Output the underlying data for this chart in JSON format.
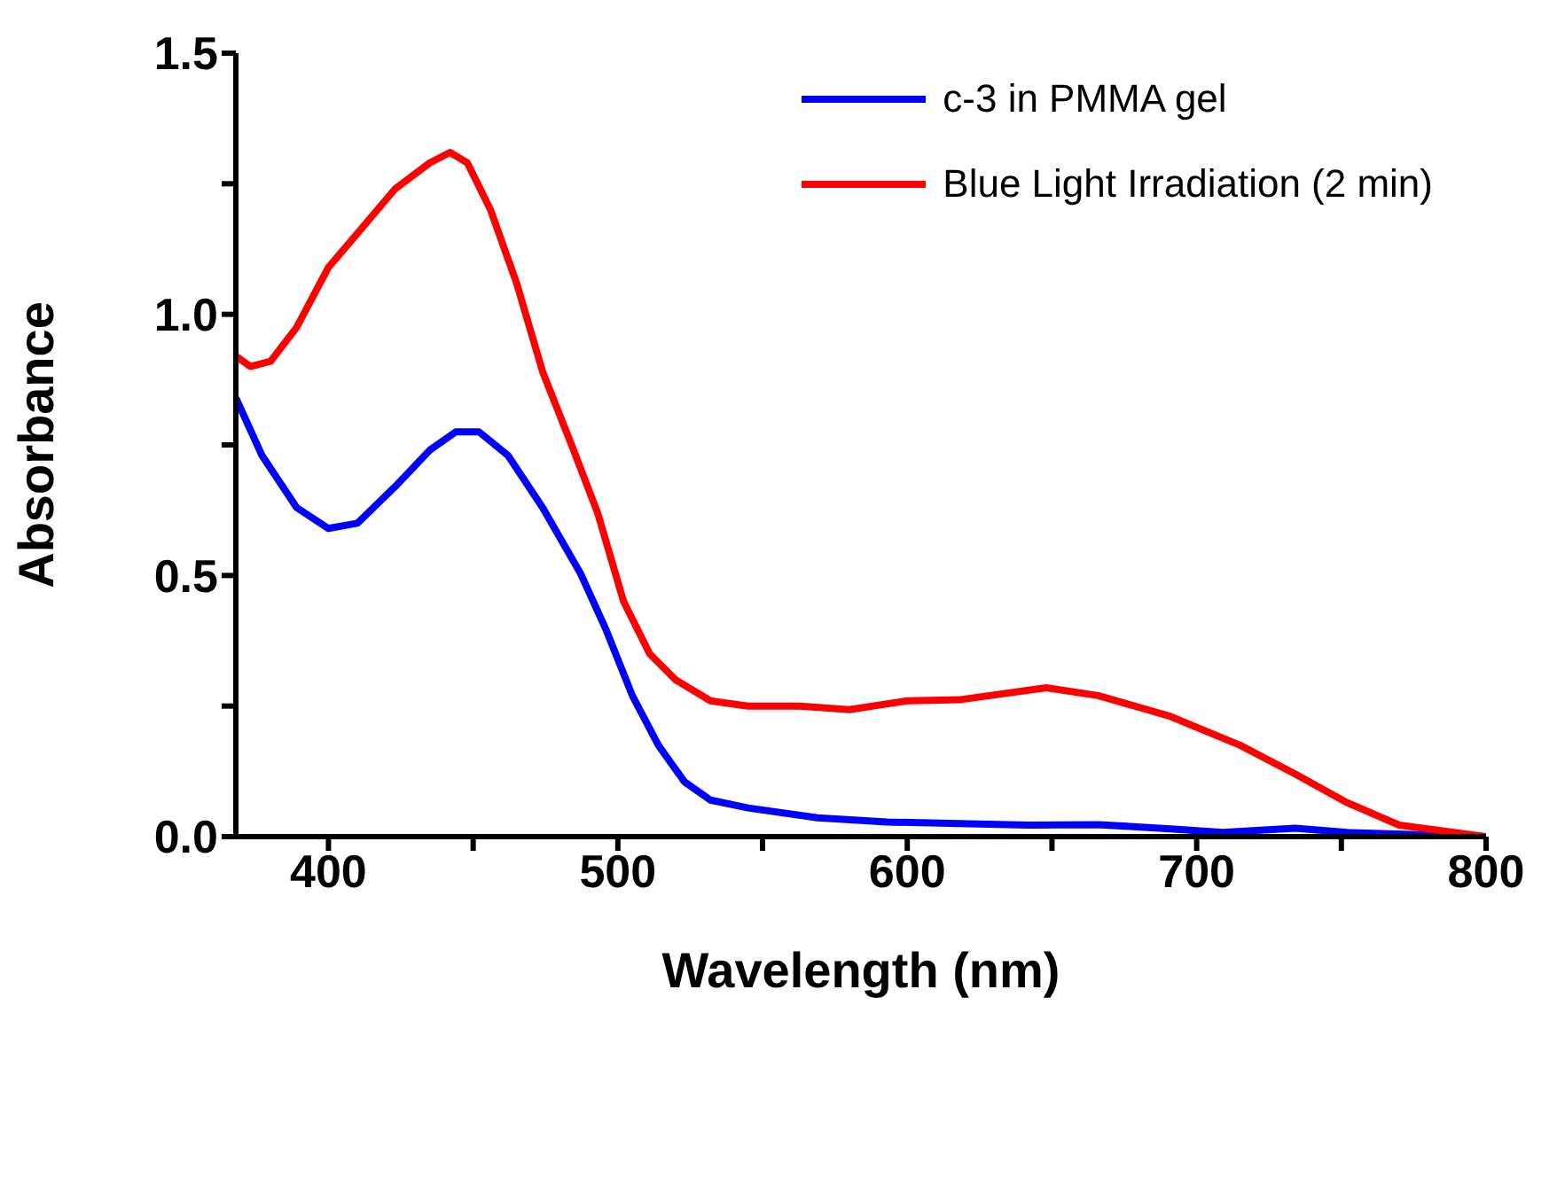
{
  "chart_data": {
    "type": "line",
    "xlabel": "Wavelength (nm)",
    "ylabel": "Absorbance",
    "xlim": [
      368,
      800
    ],
    "ylim": [
      0,
      1.5
    ],
    "xticks": [
      400,
      {
        "value": 450,
        "label": null
      },
      500,
      {
        "value": 550,
        "label": null
      },
      600,
      {
        "value": 650,
        "label": null
      },
      700,
      {
        "value": 750,
        "label": null
      },
      800
    ],
    "yticks": [
      {
        "value": 0,
        "label": "0.0"
      },
      {
        "value": 0.25,
        "label": null
      },
      {
        "value": 0.5,
        "label": "0.5"
      },
      {
        "value": 0.75,
        "label": null
      },
      {
        "value": 1.0,
        "label": "1.0"
      },
      {
        "value": 1.25,
        "label": null
      },
      {
        "value": 1.5,
        "label": "1.5"
      }
    ],
    "grid": false,
    "legend": "top right",
    "marker": "none",
    "line_style": "solid",
    "series": [
      {
        "name": "c-3 in PMMA gel",
        "color": "#0000ff",
        "x": [
          368,
          377,
          389,
          400,
          410,
          423,
          435,
          444,
          452,
          462,
          474,
          487,
          496,
          505,
          514,
          523,
          532,
          545,
          569,
          593,
          618,
          642,
          666,
          691,
          709,
          734,
          752,
          800
        ],
        "values": [
          0.84,
          0.73,
          0.63,
          0.59,
          0.6,
          0.67,
          0.74,
          0.775,
          0.775,
          0.73,
          0.63,
          0.505,
          0.395,
          0.27,
          0.175,
          0.105,
          0.07,
          0.055,
          0.036,
          0.028,
          0.025,
          0.022,
          0.023,
          0.015,
          0.008,
          0.016,
          0.008,
          0.0
        ]
      },
      {
        "name": "Blue Light Irradiation (2 min)",
        "color": "#ff0000",
        "x": [
          368,
          373,
          380,
          389,
          400,
          410,
          423,
          435,
          442,
          448,
          456,
          465,
          474,
          484,
          493,
          502,
          511,
          520,
          532,
          545,
          563,
          580,
          600,
          618,
          648,
          666,
          691,
          715,
          734,
          752,
          770,
          800
        ],
        "values": [
          0.92,
          0.9,
          0.91,
          0.975,
          1.09,
          1.155,
          1.24,
          1.29,
          1.31,
          1.29,
          1.2,
          1.06,
          0.89,
          0.75,
          0.62,
          0.45,
          0.35,
          0.3,
          0.26,
          0.25,
          0.25,
          0.243,
          0.26,
          0.262,
          0.285,
          0.27,
          0.23,
          0.175,
          0.12,
          0.065,
          0.022,
          0.0
        ]
      }
    ]
  }
}
